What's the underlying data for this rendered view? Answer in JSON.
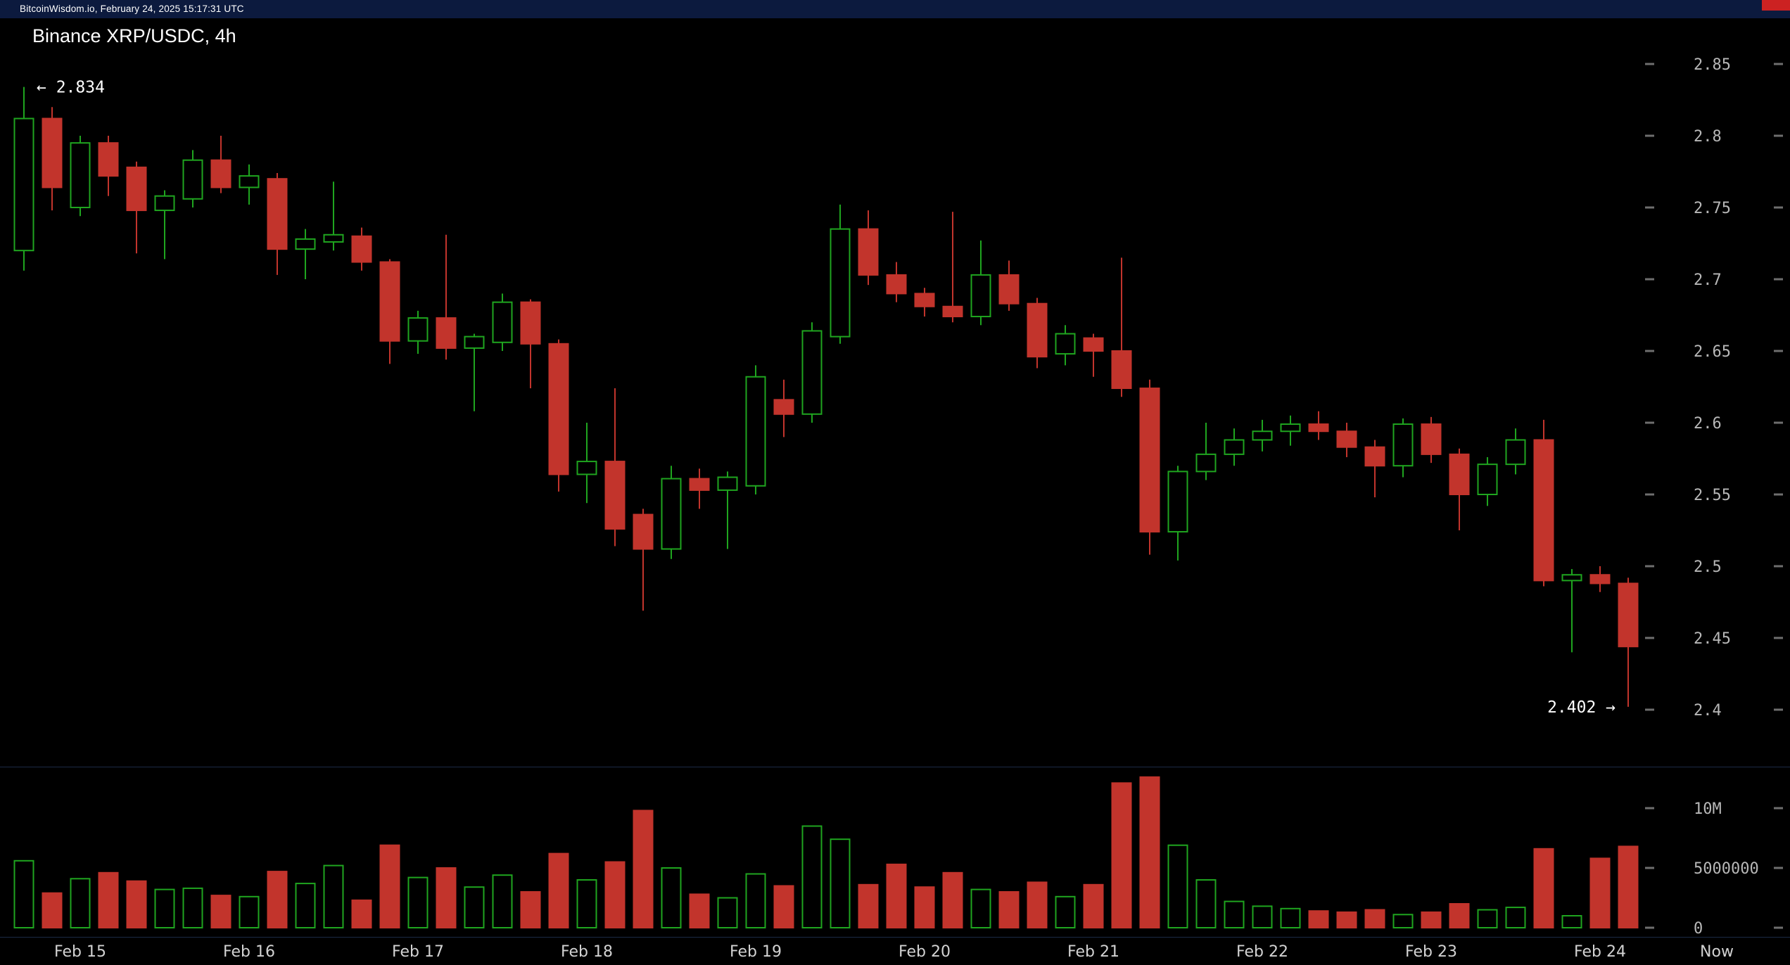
{
  "topbar": {
    "text": "BitcoinWisdom.io, February 24, 2025 15:17:31 UTC",
    "bg_color": "#0c1a3e",
    "accent_color": "#cc2222"
  },
  "title": "Binance XRP/USDC, 4h",
  "colors": {
    "background": "#000000",
    "up": "#1fa51f",
    "down": "#c2342c",
    "axis_text": "#b8b8b8",
    "date_text": "#d2d2d2",
    "annotation_text": "#ffffff",
    "tick_dash": "#6e6e6e",
    "pane_divider": "#1c2a45"
  },
  "chart_data": {
    "type": "candlestick",
    "title": "Binance XRP/USDC, 4h",
    "exchange": "Binance",
    "pair": "XRP/USDC",
    "interval": "4h",
    "grid": "off",
    "legend": "none",
    "price_axis_range": [
      2.4,
      2.85
    ],
    "volume_axis_range": [
      0,
      10000000
    ],
    "candle_format": [
      "open",
      "high",
      "low",
      "close",
      "volume"
    ],
    "candles": [
      [
        2.72,
        2.834,
        2.706,
        2.812,
        5600000
      ],
      [
        2.812,
        2.82,
        2.748,
        2.764,
        2900000
      ],
      [
        2.75,
        2.8,
        2.744,
        2.795,
        4100000
      ],
      [
        2.795,
        2.8,
        2.758,
        2.772,
        4600000
      ],
      [
        2.778,
        2.782,
        2.718,
        2.748,
        3900000
      ],
      [
        2.748,
        2.762,
        2.714,
        2.758,
        3200000
      ],
      [
        2.756,
        2.79,
        2.75,
        2.783,
        3300000
      ],
      [
        2.783,
        2.8,
        2.76,
        2.764,
        2700000
      ],
      [
        2.764,
        2.78,
        2.752,
        2.772,
        2600000
      ],
      [
        2.77,
        2.774,
        2.703,
        2.721,
        4700000
      ],
      [
        2.721,
        2.735,
        2.7,
        2.728,
        3700000
      ],
      [
        2.726,
        2.768,
        2.72,
        2.731,
        5200000
      ],
      [
        2.73,
        2.736,
        2.706,
        2.712,
        2300000
      ],
      [
        2.712,
        2.714,
        2.641,
        2.657,
        6900000
      ],
      [
        2.657,
        2.678,
        2.648,
        2.673,
        4200000
      ],
      [
        2.673,
        2.731,
        2.644,
        2.652,
        5000000
      ],
      [
        2.652,
        2.662,
        2.608,
        2.66,
        3400000
      ],
      [
        2.656,
        2.69,
        2.65,
        2.684,
        4400000
      ],
      [
        2.684,
        2.686,
        2.624,
        2.655,
        3000000
      ],
      [
        2.655,
        2.658,
        2.552,
        2.564,
        6200000
      ],
      [
        2.564,
        2.6,
        2.544,
        2.573,
        4000000
      ],
      [
        2.573,
        2.624,
        2.514,
        2.526,
        5500000
      ],
      [
        2.536,
        2.54,
        2.469,
        2.512,
        9800000
      ],
      [
        2.512,
        2.57,
        2.505,
        2.561,
        5000000
      ],
      [
        2.561,
        2.568,
        2.54,
        2.553,
        2800000
      ],
      [
        2.553,
        2.566,
        2.512,
        2.562,
        2500000
      ],
      [
        2.556,
        2.64,
        2.55,
        2.632,
        4500000
      ],
      [
        2.616,
        2.63,
        2.59,
        2.606,
        3500000
      ],
      [
        2.606,
        2.67,
        2.6,
        2.664,
        8500000
      ],
      [
        2.66,
        2.752,
        2.655,
        2.735,
        7400000
      ],
      [
        2.735,
        2.748,
        2.696,
        2.703,
        3600000
      ],
      [
        2.703,
        2.712,
        2.684,
        2.69,
        5300000
      ],
      [
        2.69,
        2.694,
        2.674,
        2.681,
        3400000
      ],
      [
        2.681,
        2.747,
        2.67,
        2.674,
        4600000
      ],
      [
        2.674,
        2.727,
        2.668,
        2.703,
        3200000
      ],
      [
        2.703,
        2.713,
        2.678,
        2.683,
        3000000
      ],
      [
        2.683,
        2.687,
        2.638,
        2.646,
        3800000
      ],
      [
        2.648,
        2.668,
        2.64,
        2.662,
        2600000
      ],
      [
        2.659,
        2.662,
        2.632,
        2.65,
        3600000
      ],
      [
        2.65,
        2.715,
        2.618,
        2.624,
        12100000
      ],
      [
        2.624,
        2.63,
        2.508,
        2.524,
        12600000
      ],
      [
        2.524,
        2.57,
        2.504,
        2.566,
        6900000
      ],
      [
        2.566,
        2.6,
        2.56,
        2.578,
        4000000
      ],
      [
        2.578,
        2.596,
        2.57,
        2.588,
        2200000
      ],
      [
        2.588,
        2.602,
        2.58,
        2.594,
        1800000
      ],
      [
        2.594,
        2.605,
        2.584,
        2.599,
        1600000
      ],
      [
        2.599,
        2.608,
        2.588,
        2.594,
        1400000
      ],
      [
        2.594,
        2.6,
        2.576,
        2.583,
        1300000
      ],
      [
        2.583,
        2.588,
        2.548,
        2.57,
        1500000
      ],
      [
        2.57,
        2.603,
        2.562,
        2.599,
        1100000
      ],
      [
        2.599,
        2.604,
        2.572,
        2.578,
        1300000
      ],
      [
        2.578,
        2.582,
        2.525,
        2.55,
        2000000
      ],
      [
        2.55,
        2.576,
        2.542,
        2.571,
        1500000
      ],
      [
        2.571,
        2.596,
        2.564,
        2.588,
        1700000
      ],
      [
        2.588,
        2.602,
        2.486,
        2.49,
        6600000
      ],
      [
        2.49,
        2.498,
        2.44,
        2.494,
        1000000
      ],
      [
        2.494,
        2.5,
        2.482,
        2.488,
        5800000
      ],
      [
        2.488,
        2.492,
        2.402,
        2.444,
        6800000
      ]
    ],
    "axis": {
      "price_ticks": [
        {
          "label": "2.85",
          "value": 2.85
        },
        {
          "label": "2.8",
          "value": 2.8
        },
        {
          "label": "2.75",
          "value": 2.75
        },
        {
          "label": "2.7",
          "value": 2.7
        },
        {
          "label": "2.65",
          "value": 2.65
        },
        {
          "label": "2.6",
          "value": 2.6
        },
        {
          "label": "2.55",
          "value": 2.55
        },
        {
          "label": "2.5",
          "value": 2.5
        },
        {
          "label": "2.45",
          "value": 2.45
        },
        {
          "label": "2.4",
          "value": 2.4
        }
      ],
      "volume_ticks": [
        {
          "label": "10M",
          "value": 10000000
        },
        {
          "label": "5000000",
          "value": 5000000
        },
        {
          "label": "0",
          "value": 0
        }
      ],
      "x_labels": [
        {
          "label": "Feb 15",
          "candle_index": 2
        },
        {
          "label": "Feb 16",
          "candle_index": 8
        },
        {
          "label": "Feb 17",
          "candle_index": 14
        },
        {
          "label": "Feb 18",
          "candle_index": 20
        },
        {
          "label": "Feb 19",
          "candle_index": 26
        },
        {
          "label": "Feb 20",
          "candle_index": 32
        },
        {
          "label": "Feb 21",
          "candle_index": 38
        },
        {
          "label": "Feb 22",
          "candle_index": 44
        },
        {
          "label": "Feb 23",
          "candle_index": 50
        },
        {
          "label": "Feb 24",
          "candle_index": 56
        },
        {
          "label": "Now",
          "candle_index": null
        }
      ]
    },
    "annotations": [
      {
        "text": "← 2.834",
        "price": 2.834,
        "side": "left"
      },
      {
        "text": "2.402 →",
        "price": 2.402,
        "side": "right"
      }
    ]
  }
}
